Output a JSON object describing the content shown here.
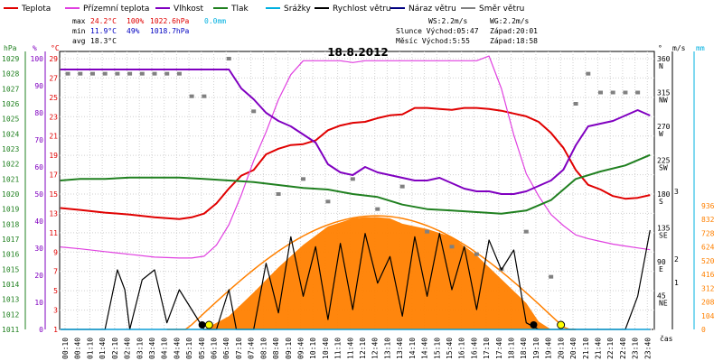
{
  "title": "18.8.2012",
  "legend": [
    {
      "label": "Teplota",
      "color": "#e00000"
    },
    {
      "label": "Přízemní teplota",
      "color": "#e040e0"
    },
    {
      "label": "Vlhkost",
      "color": "#8000c0"
    },
    {
      "label": "Tlak",
      "color": "#208020"
    },
    {
      "label": "Srážky",
      "color": "#00b0e0"
    },
    {
      "label": "Rychlost větru",
      "color": "#000000"
    },
    {
      "label": "Náraz větru",
      "color": "#000080"
    },
    {
      "label": "Směr větru",
      "color": "#808080"
    }
  ],
  "stats": {
    "max_label": "max",
    "max_temp": "24.2°C",
    "max_hum": "100%",
    "max_press": "1022.6hPa",
    "max_rain": "0.0mm",
    "min_label": "min",
    "min_temp": "11.9°C",
    "min_hum": "49%",
    "min_press": "1018.7hPa",
    "avg_label": "avg",
    "avg_temp": "18.3°C",
    "ws": "WS:2.2m/s",
    "wg": "WG:2.2m/s",
    "sun_rise": "Slunce Východ:05:47",
    "sun_set": "Západ:20:01",
    "moon_rise": "Měsíc  Východ:5:55",
    "moon_set": "Západ:18:58"
  },
  "axes": {
    "hpa_label": "hPa",
    "pct_label": "%",
    "c_label": "°C",
    "hpa_ticks": [
      "1029",
      "1028",
      "1027",
      "1026",
      "1025",
      "1024",
      "1023",
      "1022",
      "1021",
      "1020",
      "1019",
      "1018",
      "1017",
      "1016",
      "1015",
      "1014",
      "1013",
      "1012",
      "1011"
    ],
    "pct_ticks": [
      "100",
      "90",
      "80",
      "70",
      "60",
      "50",
      "40",
      "30",
      "20",
      "10",
      "0"
    ],
    "c_ticks": [
      "29",
      "27",
      "25",
      "23",
      "21",
      "19",
      "17",
      "15",
      "13",
      "11",
      "9",
      "7",
      "5",
      "3",
      "1"
    ],
    "dir_label": "°",
    "ms_label": "m/s",
    "mm_label": "mm",
    "dir_ticks": [
      {
        "deg": "360",
        "name": "N"
      },
      {
        "deg": "315",
        "name": "NW"
      },
      {
        "deg": "270",
        "name": "W"
      },
      {
        "deg": "225",
        "name": "SW"
      },
      {
        "deg": "180",
        "name": "S"
      },
      {
        "deg": "135",
        "name": "SE"
      },
      {
        "deg": "90",
        "name": "E"
      },
      {
        "deg": "45",
        "name": "NE"
      }
    ],
    "ms_ticks": [
      "3",
      "2",
      "1"
    ],
    "wm2_ticks": [
      "936",
      "832",
      "728",
      "624",
      "520",
      "416",
      "312",
      "208",
      "104",
      "0"
    ],
    "time_label": "čas",
    "time_ticks": [
      "00:10",
      "00:40",
      "01:10",
      "01:40",
      "02:10",
      "02:40",
      "03:10",
      "03:40",
      "04:10",
      "04:40",
      "05:10",
      "05:40",
      "06:10",
      "06:40",
      "07:10",
      "07:40",
      "08:10",
      "08:40",
      "09:10",
      "09:40",
      "10:10",
      "10:40",
      "11:10",
      "11:40",
      "12:10",
      "12:40",
      "13:10",
      "13:40",
      "14:10",
      "14:40",
      "15:10",
      "15:40",
      "16:10",
      "16:40",
      "17:10",
      "17:40",
      "18:10",
      "18:40",
      "19:10",
      "19:40",
      "20:10",
      "20:40",
      "21:10",
      "21:40",
      "22:10",
      "22:40",
      "23:10",
      "23:40"
    ]
  },
  "chart_data": {
    "type": "line",
    "title": "18.8.2012",
    "x_unit": "hours",
    "xlim": [
      0.17,
      24.17
    ],
    "series": [
      {
        "name": "Teplota",
        "unit": "°C",
        "color": "#e00000",
        "x": [
          0.2,
          1,
          2,
          3,
          4,
          5,
          5.5,
          6,
          6.5,
          7,
          7.5,
          8,
          8.5,
          9,
          9.5,
          10,
          10.5,
          11,
          11.5,
          12,
          12.5,
          13,
          13.5,
          14,
          14.5,
          15,
          15.5,
          16,
          16.5,
          17,
          17.5,
          18,
          18.5,
          19,
          19.5,
          20,
          20.5,
          21,
          21.5,
          22,
          22.5,
          23,
          23.5,
          24
        ],
        "y": [
          13.1,
          12.9,
          12.6,
          12.4,
          12.1,
          11.9,
          12.1,
          12.5,
          13.6,
          15.2,
          16.6,
          17.2,
          18.9,
          19.5,
          19.9,
          20.0,
          20.4,
          21.5,
          22.0,
          22.3,
          22.4,
          22.8,
          23.1,
          23.2,
          23.9,
          23.9,
          23.8,
          23.7,
          23.9,
          23.9,
          23.8,
          23.6,
          23.3,
          23.0,
          22.4,
          21.2,
          19.6,
          17.2,
          15.6,
          15.1,
          14.4,
          14.1,
          14.2,
          14.5
        ]
      },
      {
        "name": "Přízemní teplota",
        "unit": "°C",
        "color": "#e040e0",
        "x": [
          0.2,
          1,
          2,
          3,
          4,
          5,
          5.5,
          6,
          6.5,
          7,
          7.5,
          8,
          8.5,
          9,
          9.5,
          10,
          10.5,
          11,
          11.5,
          12,
          12.5,
          13,
          13.5,
          14,
          14.5,
          15,
          15.5,
          16,
          16.5,
          17,
          17.5,
          18,
          18.5,
          19,
          19.5,
          20,
          20.5,
          21,
          21.5,
          22,
          22.5,
          23,
          23.5,
          24
        ],
        "y": [
          8.9,
          8.7,
          8.4,
          8.1,
          7.8,
          7.7,
          7.7,
          7.9,
          9.1,
          11.3,
          14.5,
          18.2,
          21.3,
          24.8,
          27.5,
          29.0,
          29.0,
          29.0,
          29.0,
          28.8,
          29.0,
          29.0,
          29.0,
          29.0,
          29.0,
          29.0,
          29.0,
          29.0,
          29.0,
          29.0,
          29.5,
          26.0,
          21.0,
          16.8,
          14.4,
          12.4,
          11.2,
          10.2,
          9.8,
          9.5,
          9.2,
          9.0,
          8.8,
          8.6
        ]
      },
      {
        "name": "Vlhkost",
        "unit": "%",
        "color": "#8000c0",
        "x": [
          0.2,
          1,
          2,
          3,
          4,
          5,
          6,
          7,
          7.5,
          8,
          8.5,
          9,
          9.5,
          10,
          10.5,
          11,
          11.5,
          12,
          12.5,
          13,
          13.5,
          14,
          14.5,
          15,
          15.5,
          16,
          16.5,
          17,
          17.5,
          18,
          18.5,
          19,
          19.5,
          20,
          20.5,
          21,
          21.5,
          22,
          22.5,
          23,
          23.5,
          24
        ],
        "y": [
          96,
          96,
          96,
          96,
          96,
          96,
          96,
          96,
          89,
          85,
          80,
          77,
          75,
          72,
          69,
          61,
          58,
          57,
          60,
          58,
          57,
          56,
          55,
          55,
          56,
          54,
          52,
          51,
          51,
          50,
          50,
          51,
          53,
          55,
          59,
          68,
          75,
          76,
          77,
          79,
          81,
          79
        ]
      },
      {
        "name": "Tlak",
        "unit": "hPa",
        "color": "#208020",
        "x": [
          0.2,
          1,
          2,
          3,
          4,
          5,
          6,
          7,
          8,
          9,
          10,
          11,
          12,
          13,
          14,
          15,
          16,
          17,
          18,
          19,
          20,
          21,
          22,
          23,
          24
        ],
        "y": [
          1020.9,
          1021.0,
          1021.0,
          1021.1,
          1021.1,
          1021.1,
          1021.0,
          1020.9,
          1020.8,
          1020.6,
          1020.4,
          1020.3,
          1020.0,
          1019.8,
          1019.3,
          1019.0,
          1018.9,
          1018.8,
          1018.7,
          1018.9,
          1019.6,
          1021.0,
          1021.5,
          1021.9,
          1022.6
        ]
      },
      {
        "name": "Rychlost větru",
        "unit": "m/s",
        "color": "#000000",
        "x": [
          0.2,
          1,
          2,
          2.5,
          2.8,
          3,
          3.5,
          4,
          4.5,
          5,
          5.5,
          6,
          6.5,
          7,
          7.3,
          8,
          8.5,
          9,
          9.5,
          10,
          10.5,
          11,
          11.5,
          12,
          12.5,
          13,
          13.5,
          14,
          14.5,
          15,
          15.5,
          16,
          16.5,
          17,
          17.5,
          18,
          18.5,
          19,
          19.5,
          20,
          21,
          22,
          22.5,
          23,
          23.5,
          24
        ],
        "y": [
          0,
          0,
          0,
          1.8,
          1.2,
          0,
          1.5,
          1.8,
          0.2,
          1.2,
          0.6,
          0,
          0,
          1.2,
          0,
          0,
          2.0,
          0.5,
          2.8,
          1.0,
          2.5,
          0.3,
          2.6,
          0.6,
          2.9,
          1.4,
          2.2,
          0.4,
          2.8,
          1.0,
          2.9,
          1.2,
          2.5,
          0.6,
          2.7,
          1.8,
          2.4,
          0.2,
          0,
          0,
          0,
          0,
          0,
          0,
          1.0,
          3.0
        ]
      },
      {
        "name": "Náraz větru",
        "unit": "m/s",
        "color": "#000080",
        "x": [
          0.2,
          24
        ],
        "y": [
          0,
          0
        ]
      },
      {
        "name": "Srážky",
        "unit": "mm",
        "color": "#00b0e0",
        "x": [
          0.2,
          24
        ],
        "y": [
          0,
          0
        ]
      },
      {
        "name": "Sluneční záření",
        "unit": "W/m2",
        "color": "#ff8000",
        "x": [
          6,
          7,
          8,
          9,
          10,
          11,
          12,
          12.5,
          13,
          13.5,
          14,
          15,
          16,
          17,
          18,
          19,
          19.5,
          20
        ],
        "y": [
          0,
          100,
          280,
          470,
          640,
          780,
          840,
          850,
          850,
          840,
          800,
          760,
          700,
          560,
          380,
          200,
          60,
          0
        ]
      },
      {
        "name": "Směr větru",
        "unit": "°",
        "color": "#808080",
        "x": [
          0.5,
          1,
          1.5,
          2,
          2.5,
          3,
          3.5,
          4,
          4.5,
          5,
          5.5,
          6,
          7,
          8,
          9,
          10,
          11,
          12,
          13,
          14,
          15,
          16,
          17,
          18,
          19,
          20,
          21,
          21.5,
          22,
          22.5,
          23,
          23.5
        ],
        "y": [
          340,
          340,
          340,
          340,
          340,
          340,
          340,
          340,
          340,
          340,
          310,
          310,
          360,
          290,
          180,
          200,
          170,
          200,
          160,
          190,
          130,
          110,
          100,
          80,
          130,
          70,
          300,
          340,
          315,
          315,
          315,
          315
        ]
      }
    ]
  }
}
